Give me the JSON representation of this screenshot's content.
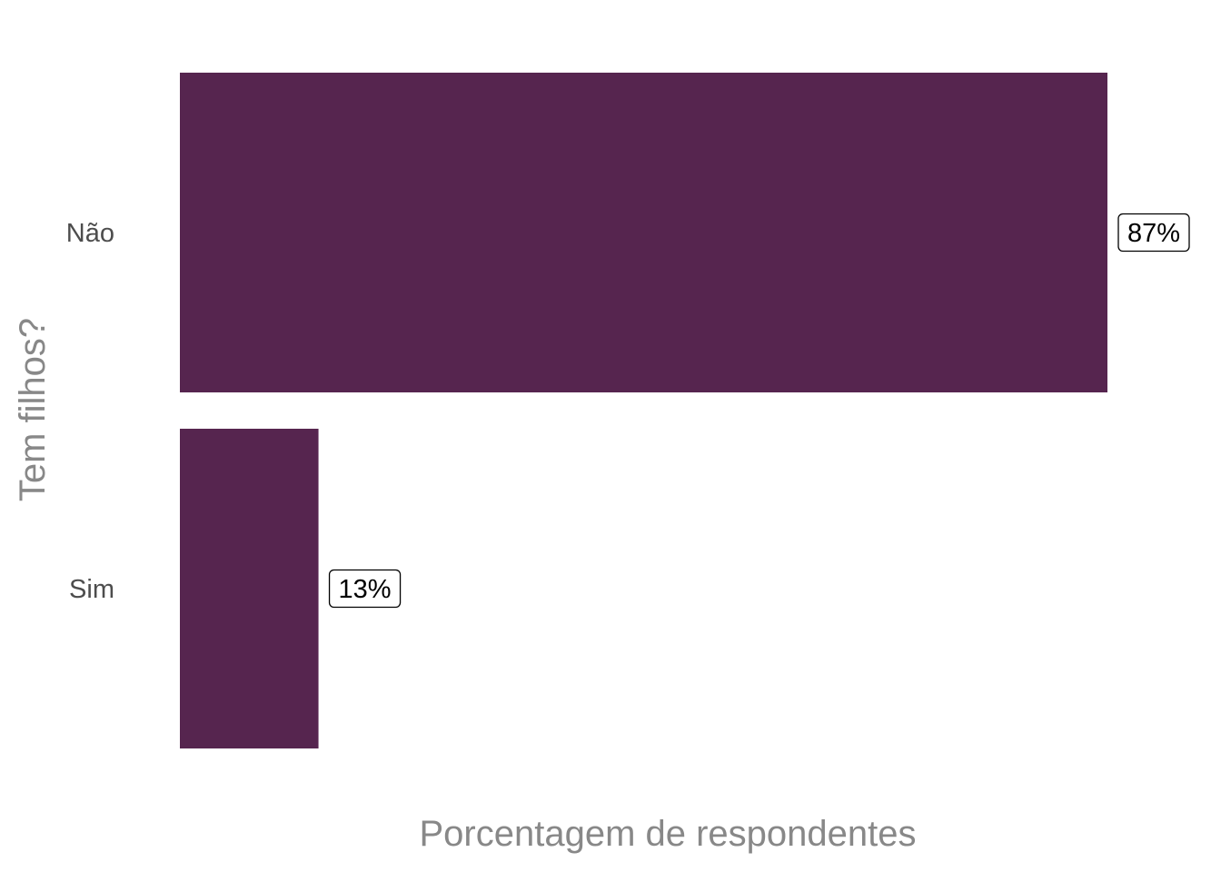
{
  "chart_data": {
    "type": "bar",
    "orientation": "horizontal",
    "categories": [
      "Não",
      "Sim"
    ],
    "values": [
      87,
      13
    ],
    "data_labels": [
      "87%",
      "13%"
    ],
    "xlabel": "Porcentagem de respondentes",
    "ylabel": "Tem filhos?",
    "xlim": [
      0,
      87
    ],
    "grid": false,
    "legend": "none",
    "bar_color": "#56254f"
  }
}
